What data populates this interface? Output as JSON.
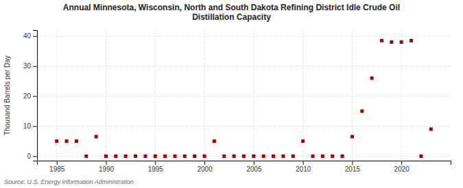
{
  "chart_data": {
    "type": "scatter",
    "title": "Annual Minnesota, Wisconsin, North and South Dakota Refining District Idle Crude Oil\nDistillation Capacity",
    "y_label": "Thousand Barrels per Day",
    "annotations": [
      "Source: U.S. Energy Information Administration"
    ],
    "color": "#aa0000",
    "marker": "square",
    "grid": true,
    "xlim": [
      1983,
      2025
    ],
    "ylim": [
      -1.5,
      42
    ],
    "xticks": [
      1985,
      1990,
      1995,
      2000,
      2005,
      2010,
      2015,
      2020
    ],
    "yticks": [
      0,
      10,
      20,
      30,
      40
    ],
    "x": [
      1985,
      1986,
      1987,
      1988,
      1989,
      1990,
      1991,
      1992,
      1993,
      1994,
      1995,
      1996,
      1997,
      1998,
      1999,
      2000,
      2001,
      2002,
      2003,
      2004,
      2005,
      2006,
      2007,
      2008,
      2009,
      2010,
      2011,
      2012,
      2013,
      2014,
      2015,
      2016,
      2017,
      2018,
      2019,
      2020,
      2021,
      2022,
      2023
    ],
    "values": [
      5.0,
      5.0,
      5.0,
      0.0,
      6.5,
      0.0,
      0.0,
      0.0,
      0.0,
      0.0,
      0.0,
      0.0,
      0.0,
      0.0,
      0.0,
      0.0,
      5.0,
      0.0,
      0.0,
      0.0,
      0.0,
      0.0,
      0.0,
      0.0,
      0.0,
      5.0,
      0.0,
      0.0,
      0.0,
      0.0,
      6.5,
      15.0,
      26.0,
      38.5,
      38.0,
      38.0,
      38.5,
      0.0,
      9.0
    ]
  }
}
